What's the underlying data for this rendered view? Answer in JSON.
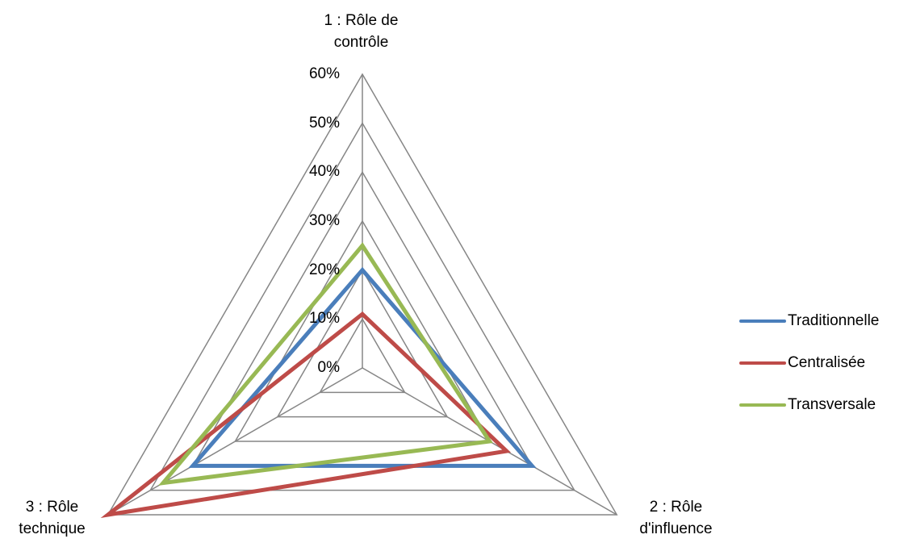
{
  "chart_data": {
    "type": "radar",
    "title": "",
    "axes": [
      "1 : Rôle de contrôle",
      "2 : Rôle d'influence",
      "3 : Rôle technique"
    ],
    "axis_labels_display": [
      "1 : Rôle de\ncontrôle",
      "2 : Rôle\nd'influence",
      "3 : Rôle\ntechnique"
    ],
    "ticks": [
      "0%",
      "10%",
      "20%",
      "30%",
      "40%",
      "50%",
      "60%"
    ],
    "range": [
      0,
      60
    ],
    "grid": true,
    "legend_position": "right",
    "series": [
      {
        "name": "Traditionnelle",
        "color": "#4a7ebb",
        "values": [
          20,
          40,
          40
        ]
      },
      {
        "name": "Centralisée",
        "color": "#be4b48",
        "values": [
          11,
          34,
          60
        ]
      },
      {
        "name": "Transversale",
        "color": "#98b954",
        "values": [
          25,
          30,
          47
        ]
      }
    ]
  }
}
